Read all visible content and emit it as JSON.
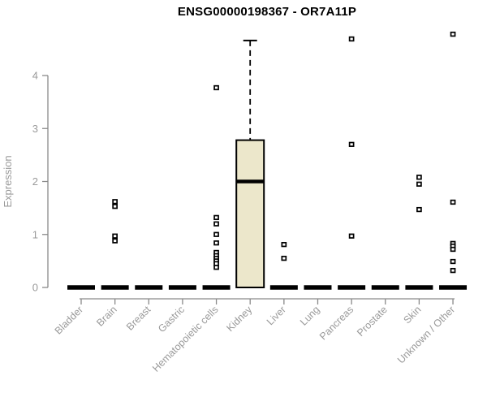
{
  "chart_data": {
    "type": "boxplot",
    "title": "ENSG00000198367 - OR7A11P",
    "xlabel": "",
    "ylabel": "Expression",
    "ylim": [
      0,
      4.8
    ],
    "yticks": [
      "0",
      "1",
      "2",
      "3",
      "4"
    ],
    "grid": false,
    "legend": false,
    "categories": [
      "Bladder",
      "Brain",
      "Breast",
      "Gastric",
      "Hematopoietic cells",
      "Kidney",
      "Liver",
      "Lung",
      "Pancreas",
      "Prostate",
      "Skin",
      "Unknown / Other"
    ],
    "series": [
      {
        "name": "Bladder",
        "whisker_low": 0,
        "q1": 0,
        "median": 0,
        "q3": 0,
        "whisker_high": 0,
        "outliers": []
      },
      {
        "name": "Brain",
        "whisker_low": 0,
        "q1": 0,
        "median": 0,
        "q3": 0,
        "whisker_high": 0,
        "outliers": [
          1.62,
          1.53,
          0.97,
          0.88
        ]
      },
      {
        "name": "Breast",
        "whisker_low": 0,
        "q1": 0,
        "median": 0,
        "q3": 0,
        "whisker_high": 0,
        "outliers": []
      },
      {
        "name": "Gastric",
        "whisker_low": 0,
        "q1": 0,
        "median": 0,
        "q3": 0,
        "whisker_high": 0,
        "outliers": []
      },
      {
        "name": "Hematopoietic cells",
        "whisker_low": 0,
        "q1": 0,
        "median": 0,
        "q3": 0,
        "whisker_high": 0,
        "outliers": [
          3.77,
          1.32,
          1.2,
          1.0,
          0.84,
          0.66,
          0.6,
          0.55,
          0.5,
          0.45,
          0.38
        ]
      },
      {
        "name": "Kidney",
        "whisker_low": 0,
        "q1": 0,
        "median": 2.0,
        "q3": 2.78,
        "whisker_high": 4.66,
        "outliers": []
      },
      {
        "name": "Liver",
        "whisker_low": 0,
        "q1": 0,
        "median": 0,
        "q3": 0,
        "whisker_high": 0,
        "outliers": [
          0.81,
          0.55
        ]
      },
      {
        "name": "Lung",
        "whisker_low": 0,
        "q1": 0,
        "median": 0,
        "q3": 0,
        "whisker_high": 0,
        "outliers": []
      },
      {
        "name": "Pancreas",
        "whisker_low": 0,
        "q1": 0,
        "median": 0,
        "q3": 0,
        "whisker_high": 0,
        "outliers": [
          4.69,
          2.7,
          0.97
        ]
      },
      {
        "name": "Prostate",
        "whisker_low": 0,
        "q1": 0,
        "median": 0,
        "q3": 0,
        "whisker_high": 0,
        "outliers": []
      },
      {
        "name": "Skin",
        "whisker_low": 0,
        "q1": 0,
        "median": 0,
        "q3": 0,
        "whisker_high": 0,
        "outliers": [
          2.08,
          1.95,
          1.47
        ]
      },
      {
        "name": "Unknown / Other",
        "whisker_low": 0,
        "q1": 0,
        "median": 0,
        "q3": 0,
        "whisker_high": 0,
        "outliers": [
          4.78,
          1.61,
          0.83,
          0.78,
          0.72,
          0.49,
          0.32
        ]
      }
    ],
    "colors": {
      "box_fill": "#ECE7CB",
      "box_border": "#000000",
      "median": "#000000",
      "axis": "#8A8A8A",
      "tick_label": "#9A9A9A",
      "title": "#000000",
      "background": "#FFFFFF"
    }
  }
}
